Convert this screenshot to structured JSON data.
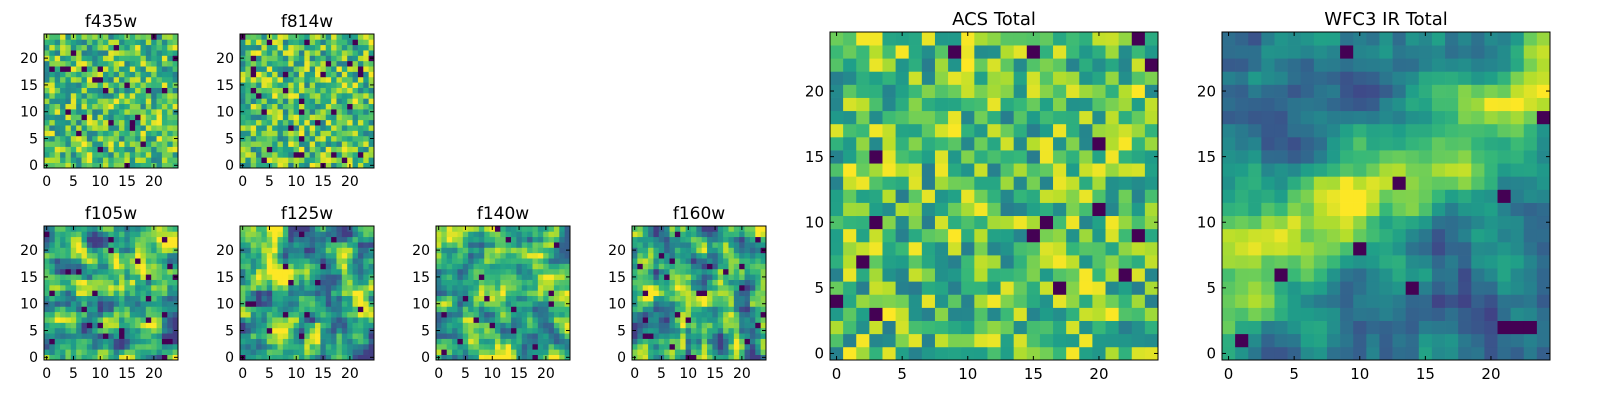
{
  "chart_data": [
    {
      "type": "heatmap",
      "title": "f435w",
      "colormap": "viridis",
      "shape": [
        25,
        25
      ],
      "xlim": [
        0,
        24
      ],
      "ylim": [
        0,
        24
      ],
      "xticks": [
        0,
        5,
        10,
        15,
        20
      ],
      "yticks": [
        0,
        5,
        10,
        15,
        20
      ],
      "noise_seed": 11,
      "pattern": "uniform",
      "low_pixel_fraction": 0.04
    },
    {
      "type": "heatmap",
      "title": "f814w",
      "colormap": "viridis",
      "shape": [
        25,
        25
      ],
      "xlim": [
        0,
        24
      ],
      "ylim": [
        0,
        24
      ],
      "xticks": [
        0,
        5,
        10,
        15,
        20
      ],
      "yticks": [
        0,
        5,
        10,
        15,
        20
      ],
      "noise_seed": 23,
      "pattern": "uniform",
      "low_pixel_fraction": 0.05
    },
    {
      "type": "heatmap",
      "title": "f105w",
      "colormap": "viridis",
      "shape": [
        25,
        25
      ],
      "xlim": [
        0,
        24
      ],
      "ylim": [
        0,
        24
      ],
      "xticks": [
        0,
        5,
        10,
        15,
        20
      ],
      "yticks": [
        0,
        5,
        10,
        15,
        20
      ],
      "noise_seed": 37,
      "pattern": "smooth",
      "low_pixel_fraction": 0.03
    },
    {
      "type": "heatmap",
      "title": "f125w",
      "colormap": "viridis",
      "shape": [
        25,
        25
      ],
      "xlim": [
        0,
        24
      ],
      "ylim": [
        0,
        24
      ],
      "xticks": [
        0,
        5,
        10,
        15,
        20
      ],
      "yticks": [
        0,
        5,
        10,
        15,
        20
      ],
      "noise_seed": 41,
      "pattern": "smooth",
      "low_pixel_fraction": 0.03
    },
    {
      "type": "heatmap",
      "title": "f140w",
      "colormap": "viridis",
      "shape": [
        25,
        25
      ],
      "xlim": [
        0,
        24
      ],
      "ylim": [
        0,
        24
      ],
      "xticks": [
        0,
        5,
        10,
        15,
        20
      ],
      "yticks": [
        0,
        5,
        10,
        15,
        20
      ],
      "noise_seed": 53,
      "pattern": "smooth-bright",
      "low_pixel_fraction": 0.02
    },
    {
      "type": "heatmap",
      "title": "f160w",
      "colormap": "viridis",
      "shape": [
        25,
        25
      ],
      "xlim": [
        0,
        24
      ],
      "ylim": [
        0,
        24
      ],
      "xticks": [
        0,
        5,
        10,
        15,
        20
      ],
      "yticks": [
        0,
        5,
        10,
        15,
        20
      ],
      "noise_seed": 67,
      "pattern": "smooth",
      "low_pixel_fraction": 0.03
    },
    {
      "type": "heatmap",
      "title": "ACS Total",
      "colormap": "viridis",
      "shape": [
        25,
        25
      ],
      "xlim": [
        0,
        24
      ],
      "ylim": [
        0,
        24
      ],
      "xticks": [
        0,
        5,
        10,
        15,
        20
      ],
      "yticks": [
        0,
        5,
        10,
        15,
        20
      ],
      "noise_seed": 79,
      "pattern": "uniform",
      "low_pixel_fraction": 0.02
    },
    {
      "type": "heatmap",
      "title": "WFC3 IR Total",
      "colormap": "viridis",
      "shape": [
        25,
        25
      ],
      "xlim": [
        0,
        24
      ],
      "ylim": [
        0,
        24
      ],
      "xticks": [
        0,
        5,
        10,
        15,
        20
      ],
      "yticks": [
        0,
        5,
        10,
        15,
        20
      ],
      "noise_seed": 97,
      "pattern": "diagonal-band",
      "low_pixel_fraction": 0.02
    }
  ]
}
